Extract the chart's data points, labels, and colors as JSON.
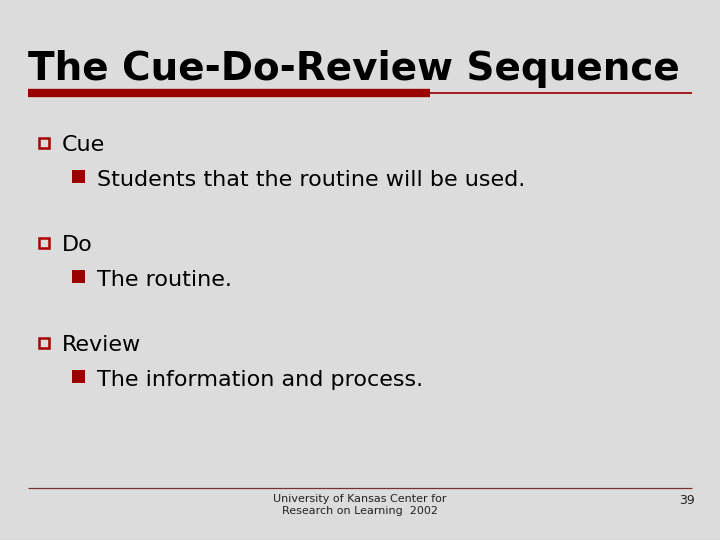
{
  "title": "The Cue-Do-Review Sequence",
  "background_color": "#dcdcdc",
  "stripe_color1": "#d8d8d8",
  "stripe_color2": "#e0e0e0",
  "title_color": "#000000",
  "title_fontsize": 28,
  "red_thick_color": "#990000",
  "red_thin_color": "#990000",
  "bullet1_label": "Cue",
  "bullet1_sub": "Students that the routine will be used.",
  "bullet2_label": "Do",
  "bullet2_sub": "The routine.",
  "bullet3_label": "Review",
  "bullet3_sub": "The information and process.",
  "outer_bullet_color": "#aa0000",
  "inner_bullet_color": "#990000",
  "footer_text": "University of Kansas Center for\nResearch on Learning  2002",
  "page_number": "39",
  "bullet_fontsize": 16,
  "sub_fontsize": 16,
  "footer_fontsize": 8,
  "page_num_fontsize": 9
}
